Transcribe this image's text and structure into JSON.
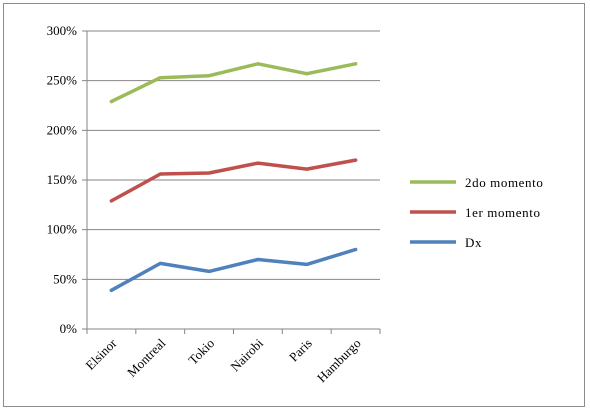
{
  "chart_data": {
    "type": "line",
    "categories": [
      "Elsinor",
      "Montreal",
      "Tokio",
      "Nairobi",
      "Paris",
      "Hamburgo"
    ],
    "series": [
      {
        "name": "2do momento",
        "values": [
          229,
          253,
          255,
          267,
          257,
          267
        ],
        "color": "#9bbb59"
      },
      {
        "name": "1er momento",
        "values": [
          129,
          156,
          157,
          167,
          161,
          170
        ],
        "color": "#c0504d"
      },
      {
        "name": "Dx",
        "values": [
          39,
          66,
          58,
          70,
          65,
          80
        ],
        "color": "#4f81bd"
      }
    ],
    "ylim": [
      0,
      300
    ],
    "yticks": [
      "0%",
      "50%",
      "100%",
      "150%",
      "200%",
      "250%",
      "300%"
    ],
    "grid": true,
    "legend_position": "right",
    "title": "",
    "xlabel": "",
    "ylabel": ""
  }
}
